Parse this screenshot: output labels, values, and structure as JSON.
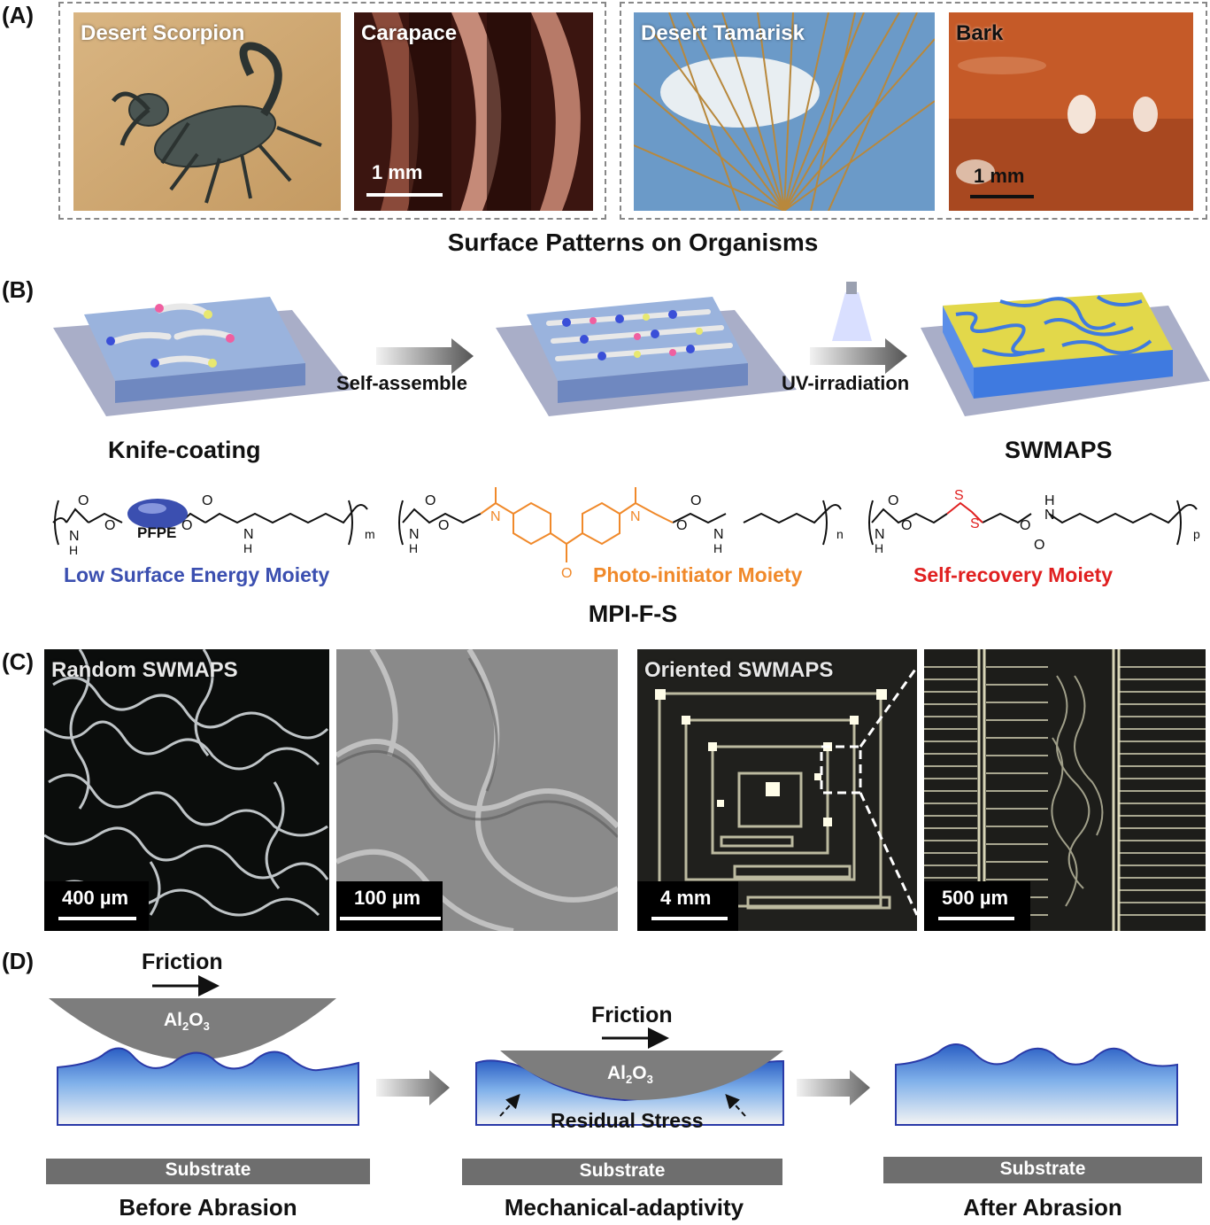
{
  "panelA": {
    "label": "(A)",
    "photos": [
      {
        "title": "Desert Scorpion",
        "scalebar": ""
      },
      {
        "title": "Carapace",
        "scalebar": "1 mm"
      },
      {
        "title": "Desert Tamarisk",
        "scalebar": ""
      },
      {
        "title": "Bark",
        "scalebar": "1 mm"
      }
    ],
    "caption": "Surface Patterns on Organisms"
  },
  "panelB": {
    "label": "(B)",
    "step1": "Self-assemble",
    "step2": "UV-irradiation",
    "left_caption": "Knife-coating",
    "right_caption": "SWMAPS",
    "molecule": {
      "pfpe": "PFPE",
      "sub_m": "m",
      "sub_n": "n",
      "sub_p": "p",
      "atom_O": "O",
      "atom_N": "N",
      "atom_H": "H",
      "atom_S": "S",
      "moiety_low": "Low Surface Energy Moiety",
      "moiety_photo": "Photo-initiator Moiety",
      "moiety_self": "Self-recovery Moiety",
      "name": "MPI-F-S"
    },
    "colors": {
      "low": "#3b4fb0",
      "photo": "#f0892a",
      "self": "#e02020"
    }
  },
  "panelC": {
    "label": "(C)",
    "images": [
      {
        "title": "Random SWMAPS",
        "scalebar": "400 µm"
      },
      {
        "title": "",
        "scalebar": "100 µm"
      },
      {
        "title": "Oriented SWMAPS",
        "scalebar": "4 mm"
      },
      {
        "title": "",
        "scalebar": "500 µm"
      }
    ]
  },
  "panelD": {
    "label": "(D)",
    "friction": "Friction",
    "al": "Al",
    "sub2": "2",
    "o": "O",
    "sub3": "3",
    "residual": "Residual Stress",
    "substrate": "Substrate",
    "captions": [
      "Before Abrasion",
      "Mechanical-adaptivity",
      "After Abrasion"
    ]
  }
}
